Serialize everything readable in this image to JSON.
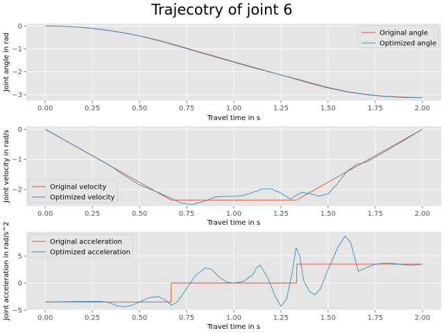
{
  "figure": {
    "title": "Trajecotry of joint 6"
  },
  "colors": {
    "original": "#e24a33",
    "optimized": "#348abd",
    "axes_bg": "#e5e5e5",
    "grid": "#ffffff",
    "tick": "#555555"
  },
  "chart_data": [
    {
      "type": "line",
      "xlabel": "Travel time in s",
      "ylabel": "Joint angle in rad",
      "xlim": [
        -0.1,
        2.1
      ],
      "ylim": [
        -3.25,
        0.1
      ],
      "xticks": [
        0.0,
        0.25,
        0.5,
        0.75,
        1.0,
        1.25,
        1.5,
        1.75,
        2.0
      ],
      "xtick_labels": [
        "0.00",
        "0.25",
        "0.50",
        "0.75",
        "1.00",
        "1.25",
        "1.50",
        "1.75",
        "2.00"
      ],
      "yticks": [
        0,
        -1,
        -2,
        -3
      ],
      "ytick_labels": [
        "0",
        "−1",
        "−2",
        "−3"
      ],
      "grid": true,
      "legend": "upper-right",
      "series": [
        {
          "name": "Original angle",
          "color": "original",
          "x": [
            0,
            0.1,
            0.2,
            0.3,
            0.4,
            0.5,
            0.6,
            0.67,
            0.8,
            0.9,
            1.0,
            1.1,
            1.2,
            1.33,
            1.4,
            1.5,
            1.6,
            1.7,
            1.8,
            1.9,
            2.0
          ],
          "y": [
            0,
            -0.017,
            -0.069,
            -0.156,
            -0.277,
            -0.433,
            -0.624,
            -0.78,
            -1.09,
            -1.32,
            -1.56,
            -1.79,
            -2.02,
            -2.32,
            -2.49,
            -2.7,
            -2.87,
            -2.99,
            -3.07,
            -3.11,
            -3.12
          ]
        },
        {
          "name": "Optimized angle",
          "color": "optimized",
          "x": [
            0,
            0.1,
            0.2,
            0.3,
            0.4,
            0.5,
            0.6,
            0.67,
            0.8,
            0.9,
            1.0,
            1.1,
            1.2,
            1.33,
            1.4,
            1.5,
            1.6,
            1.7,
            1.8,
            1.9,
            2.0
          ],
          "y": [
            0,
            -0.017,
            -0.069,
            -0.156,
            -0.279,
            -0.44,
            -0.64,
            -0.8,
            -1.11,
            -1.35,
            -1.58,
            -1.81,
            -2.03,
            -2.3,
            -2.46,
            -2.68,
            -2.86,
            -2.98,
            -3.06,
            -3.1,
            -3.12
          ]
        }
      ]
    },
    {
      "type": "line",
      "xlabel": "Travel time in s",
      "ylabel": "Joint velocity in rad/s",
      "xlim": [
        -0.1,
        2.1
      ],
      "ylim": [
        -2.55,
        0.1
      ],
      "xticks": [
        0.0,
        0.25,
        0.5,
        0.75,
        1.0,
        1.25,
        1.5,
        1.75,
        2.0
      ],
      "xtick_labels": [
        "0.00",
        "0.25",
        "0.50",
        "0.75",
        "1.00",
        "1.25",
        "1.50",
        "1.75",
        "2.00"
      ],
      "yticks": [
        0,
        -1,
        -2
      ],
      "ytick_labels": [
        "0",
        "−1",
        "−2"
      ],
      "grid": true,
      "legend": "lower-left",
      "series": [
        {
          "name": "Original velocity",
          "color": "original",
          "x": [
            0,
            0.667,
            1.333,
            2.0
          ],
          "y": [
            0,
            -2.35,
            -2.35,
            0
          ]
        },
        {
          "name": "Optimized velocity",
          "color": "optimized",
          "x": [
            0,
            0.1,
            0.2,
            0.3,
            0.35,
            0.4,
            0.5,
            0.6,
            0.67,
            0.72,
            0.78,
            0.85,
            0.9,
            0.95,
            1.0,
            1.05,
            1.1,
            1.15,
            1.2,
            1.25,
            1.3,
            1.33,
            1.36,
            1.4,
            1.45,
            1.5,
            1.55,
            1.6,
            1.65,
            1.7,
            1.8,
            1.9,
            2.0
          ],
          "y": [
            0,
            -0.35,
            -0.7,
            -1.05,
            -1.23,
            -1.45,
            -1.85,
            -2.1,
            -2.3,
            -2.45,
            -2.5,
            -2.38,
            -2.25,
            -2.23,
            -2.23,
            -2.2,
            -2.1,
            -1.98,
            -1.98,
            -2.12,
            -2.32,
            -2.2,
            -2.1,
            -2.13,
            -2.22,
            -2.15,
            -1.8,
            -1.4,
            -1.17,
            -1.1,
            -0.75,
            -0.38,
            0
          ]
        }
      ]
    },
    {
      "type": "line",
      "xlabel": "Travel time in s",
      "ylabel": "Joint acceleration in rad/s^2",
      "xlim": [
        -0.1,
        2.1
      ],
      "ylim": [
        -5.0,
        9.5
      ],
      "xticks": [
        0.0,
        0.25,
        0.5,
        0.75,
        1.0,
        1.25,
        1.5,
        1.75,
        2.0
      ],
      "xtick_labels": [
        "0.00",
        "0.25",
        "0.50",
        "0.75",
        "1.00",
        "1.25",
        "1.50",
        "1.75",
        "2.00"
      ],
      "yticks": [
        5,
        0,
        -5
      ],
      "ytick_labels": [
        "5",
        "0",
        "−5"
      ],
      "grid": true,
      "legend": "upper-left",
      "series": [
        {
          "name": "Original acceleration",
          "color": "original",
          "x": [
            0,
            0.667,
            0.667,
            0.669,
            1.333,
            1.333,
            1.335,
            2.0
          ],
          "y": [
            -3.5,
            -3.5,
            -1.5,
            0,
            0,
            1.5,
            3.5,
            3.5
          ]
        },
        {
          "name": "Optimized acceleration",
          "color": "optimized",
          "x": [
            0,
            0.1,
            0.2,
            0.3,
            0.34,
            0.38,
            0.42,
            0.46,
            0.5,
            0.55,
            0.6,
            0.64,
            0.67,
            0.7,
            0.75,
            0.8,
            0.85,
            0.88,
            0.92,
            0.96,
            1.0,
            1.05,
            1.1,
            1.12,
            1.14,
            1.18,
            1.22,
            1.25,
            1.28,
            1.31,
            1.33,
            1.35,
            1.37,
            1.4,
            1.43,
            1.46,
            1.5,
            1.55,
            1.59,
            1.62,
            1.65,
            1.66,
            1.7,
            1.75,
            1.8,
            1.85,
            1.9,
            1.95,
            2.0
          ],
          "y": [
            -3.5,
            -3.45,
            -3.4,
            -3.4,
            -3.6,
            -4.2,
            -4.4,
            -4.1,
            -3.5,
            -2.7,
            -2.5,
            -3.2,
            -4.1,
            -3.5,
            -1.0,
            1.5,
            2.8,
            2.6,
            1.2,
            0.2,
            0.0,
            0.3,
            1.5,
            2.8,
            3.3,
            1.0,
            -2.5,
            -4.3,
            -3.0,
            2.0,
            6.5,
            5.0,
            0.5,
            -1.5,
            -2.2,
            -1.0,
            2.5,
            6.5,
            8.7,
            7.5,
            3.5,
            2.2,
            2.8,
            3.5,
            3.7,
            3.6,
            3.4,
            3.3,
            3.5
          ]
        }
      ]
    }
  ]
}
